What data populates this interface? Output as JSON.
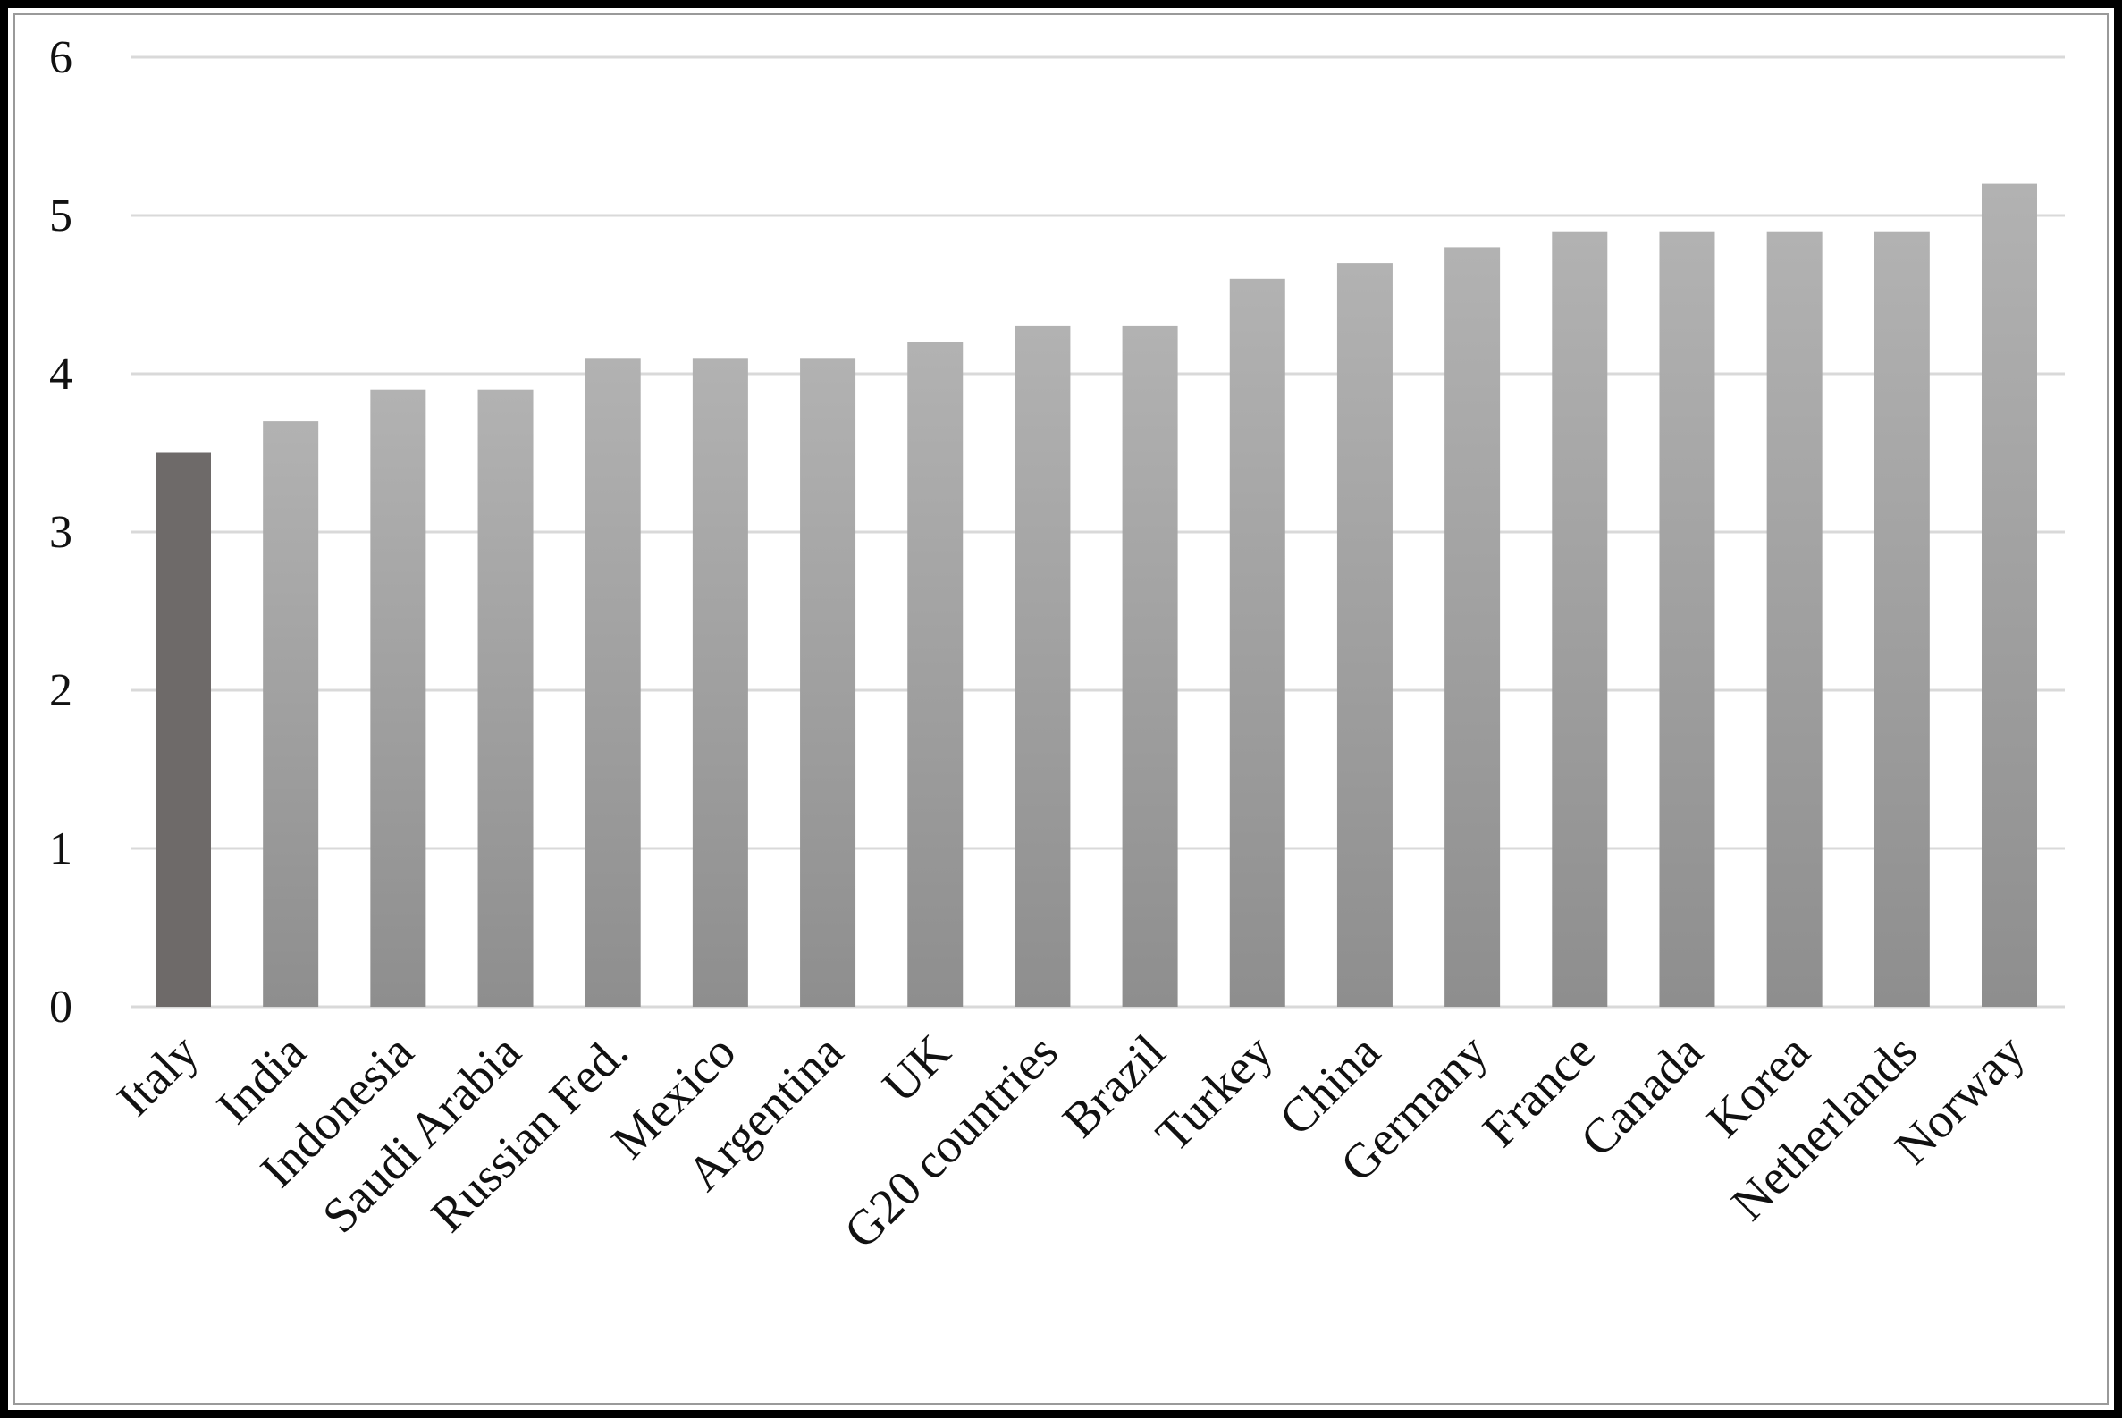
{
  "chart_data": {
    "type": "bar",
    "categories": [
      "Italy",
      "India",
      "Indonesia",
      "Saudi Arabia",
      "Russian Fed.",
      "Mexico",
      "Argentina",
      "UK",
      "G20 countries",
      "Brazil",
      "Turkey",
      "China",
      "Germany",
      "France",
      "Canada",
      "Korea",
      "Netherlands",
      "Norway"
    ],
    "values": [
      3.5,
      3.7,
      3.9,
      3.9,
      4.1,
      4.1,
      4.1,
      4.2,
      4.3,
      4.3,
      4.6,
      4.7,
      4.8,
      4.9,
      4.9,
      4.9,
      4.9,
      5.2
    ],
    "title": "",
    "xlabel": "",
    "ylabel": "",
    "ylim": [
      0,
      6
    ],
    "yticks": [
      "0",
      "1",
      "2",
      "3",
      "4",
      "5",
      "6"
    ],
    "grid": true,
    "legend": "none",
    "highlighted_category": "Italy",
    "colors": {
      "highlight": "#6e6a69",
      "bar_top": "#b2b2b2",
      "bar_bottom": "#8e8e8e",
      "grid": "#d9d9d9",
      "frame": "#000000"
    }
  }
}
